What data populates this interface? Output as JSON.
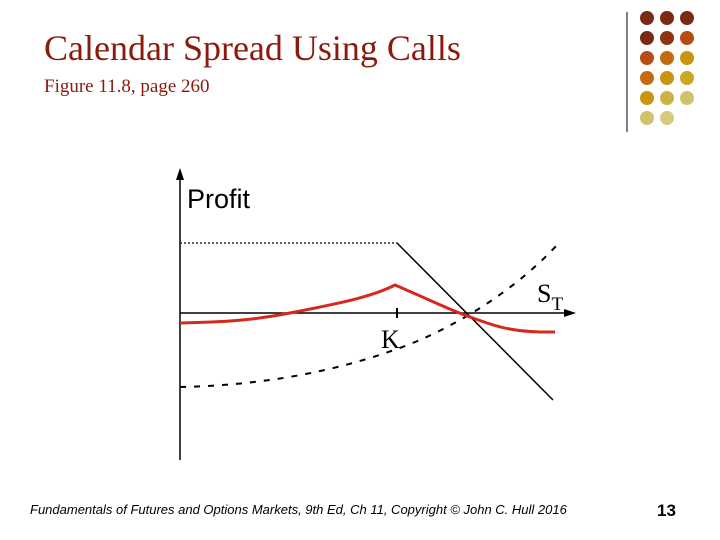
{
  "header": {
    "title": "Calendar Spread Using Calls",
    "subtitle": "Figure 11.8, page 260"
  },
  "diagram": {
    "y_axis_label": "Profit",
    "x_axis_label": {
      "symbol": "S",
      "subscript": "T"
    },
    "strike_label": "K"
  },
  "footer": {
    "text": "Fundamentals of Futures and Options Markets, 9th Ed, Ch 11, Copyright © John C. Hull 2016",
    "page_number": "13"
  }
}
